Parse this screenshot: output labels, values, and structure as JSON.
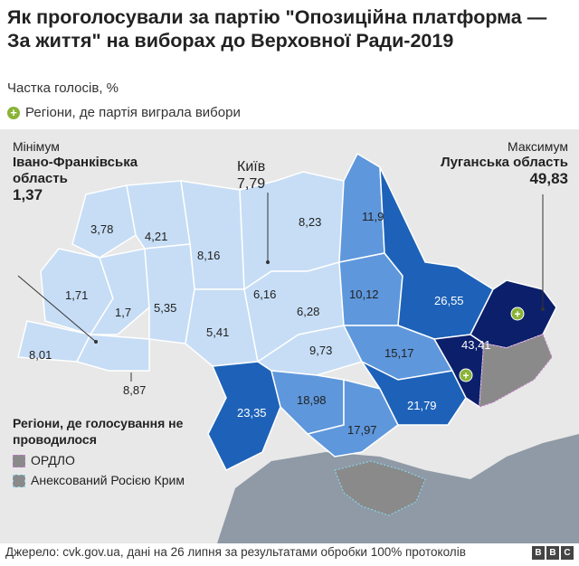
{
  "title": "Як проголосували за партію \"Опозиційна платформа — За життя\" на виборах до Верховної Ради-2019",
  "subtitle": "Частка голосів, %",
  "legend_winner": "Регіони, де партія виграла вибори",
  "minimum": {
    "heading": "Мінімум",
    "region": "Івано-Франківська область",
    "value": "1,37"
  },
  "maximum": {
    "heading": "Максимум",
    "region": "Луганська область",
    "value": "49,83"
  },
  "kyiv": {
    "name": "Київ",
    "value": "7,79"
  },
  "no_election": {
    "heading": "Регіони, де голосування не проводилося",
    "ordlo": "ОРДЛО",
    "crimea": "Анексований Росією Крим"
  },
  "source": "Джерело: cvk.gov.ua, дані на 26 липня за результатами обробки 100% протоколів",
  "bbc": [
    "B",
    "B",
    "C"
  ],
  "colors": {
    "lightest": "#c6ddf5",
    "light": "#a9caf0",
    "mid": "#5e97dc",
    "dark": "#1d62b8",
    "darkest": "#0b1f6b",
    "grey": "#8a8a8a",
    "winner": "#8ab338"
  },
  "region_values": {
    "volyn": "3,78",
    "rivne": "4,21",
    "zhytomyr": "8,16",
    "kyiv_oblast": "8,23",
    "chernihiv": "11,9",
    "lviv": "1,71",
    "ternopil": "1,7",
    "khmelnytskyi": "5,35",
    "vinnytsia": "5,41",
    "kyiv_center": "6,16",
    "cherkasy": "6,28",
    "poltava": "10,12",
    "sumy_kharkiv": "26,55",
    "zakarpattia": "8,01",
    "chernivtsi": "8,87",
    "kirovohrad": "9,73",
    "dnipro": "15,17",
    "odesa": "23,35",
    "mykolaiv": "18,98",
    "kherson": "17,97",
    "zaporizhzhia": "21,79",
    "donetsk": "43,41"
  }
}
